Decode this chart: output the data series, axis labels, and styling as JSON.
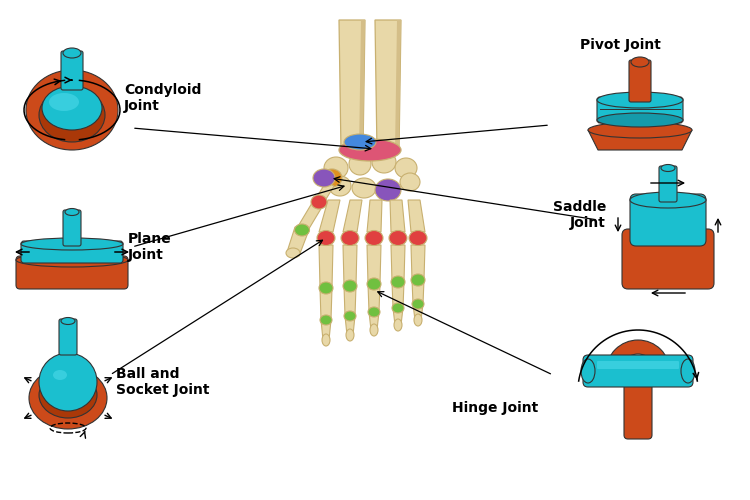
{
  "background_color": "#ffffff",
  "text_color": "#000000",
  "labels": {
    "condyloid": "Condyloid\nJoint",
    "plane": "Plane\nJoint",
    "ball_socket": "Ball and\nSocket Joint",
    "pivot": "Pivot Joint",
    "saddle": "Saddle\nJoint",
    "hinge": "Hinge Joint"
  },
  "colors": {
    "teal": "#1BBFCF",
    "orange_red": "#CC4A1A",
    "bone": "#E8D8A8",
    "bone_dark": "#C8B070",
    "bone_shade": "#D4BE88",
    "red_joint": "#E04040",
    "green_joint": "#70C040",
    "blue_joint": "#4488DD",
    "purple_joint": "#8855BB",
    "orange_joint": "#E09020",
    "pink_joint": "#DD5575"
  },
  "label_fontsize": 10,
  "annotation_fontsize": 9
}
